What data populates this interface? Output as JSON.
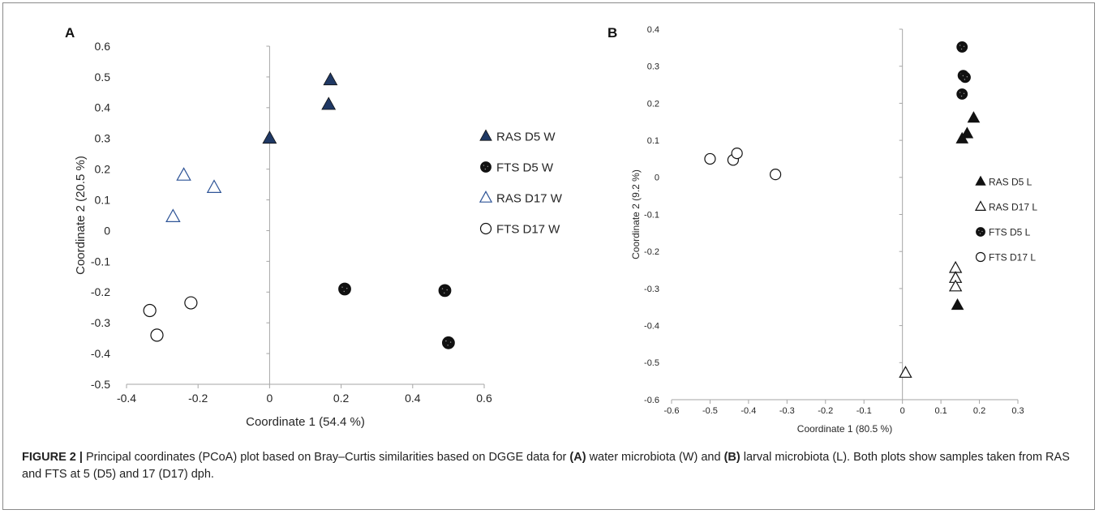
{
  "figure_label": "FIGURE 2 |",
  "caption": {
    "t1": "Principal coordinates (PCoA) plot based on Bray–Curtis similarities based on DGGE data for",
    "a": "(A)",
    "t2": "water microbiota (W) and",
    "b": "(B)",
    "t3": "larval microbiota (L). Both plots show samples taken from RAS and FTS at 5 (D5) and 17 (D17) dph."
  },
  "colors": {
    "axis": "#a6a6a6",
    "navy": "#1f3864",
    "blue_outline": "#2f5597",
    "black": "#111111"
  },
  "chart_data": [
    {
      "type": "scatter",
      "panel": "A",
      "title": "",
      "xlabel": "Coordinate 1 (54.4 %)",
      "ylabel": "Coordinate 2 (20.5 %)",
      "xlim": [
        -0.4,
        0.6
      ],
      "ylim": [
        -0.5,
        0.6
      ],
      "xticks": [
        "-0.4",
        "-0.2",
        "0",
        "0.2",
        "0.4",
        "0.6"
      ],
      "yticks": [
        "0.6",
        "0.5",
        "0.4",
        "0.3",
        "0.2",
        "0.1",
        "0",
        "-0.1",
        "-0.2",
        "-0.3",
        "-0.4",
        "-0.5"
      ],
      "grid": false,
      "legend_position": "right",
      "series": [
        {
          "name": "RAS D5 W",
          "marker": "triangle-filled",
          "points": [
            [
              0.17,
              0.49
            ],
            [
              0.165,
              0.41
            ],
            [
              0.0,
              0.3
            ]
          ]
        },
        {
          "name": "FTS D5 W",
          "marker": "circle-filled",
          "points": [
            [
              0.21,
              -0.19
            ],
            [
              0.49,
              -0.195
            ],
            [
              0.5,
              -0.365
            ]
          ]
        },
        {
          "name": "RAS D17 W",
          "marker": "triangle-open",
          "points": [
            [
              -0.24,
              0.18
            ],
            [
              -0.155,
              0.14
            ],
            [
              -0.27,
              0.045
            ]
          ]
        },
        {
          "name": "FTS D17 W",
          "marker": "circle-open",
          "points": [
            [
              -0.335,
              -0.26
            ],
            [
              -0.22,
              -0.235
            ],
            [
              -0.315,
              -0.34
            ]
          ]
        }
      ]
    },
    {
      "type": "scatter",
      "panel": "B",
      "title": "",
      "xlabel": "Coordinate 1 (80.5 %)",
      "ylabel": "Coordinate 2 (9.2 %)",
      "xlim": [
        -0.6,
        0.3
      ],
      "ylim": [
        -0.6,
        0.4
      ],
      "xticks": [
        "-0.6",
        "-0.5",
        "-0.4",
        "-0.3",
        "-0.2",
        "-0.1",
        "0",
        "0.1",
        "0.2",
        "0.3"
      ],
      "yticks": [
        "0.4",
        "0.3",
        "0.2",
        "0.1",
        "0",
        "-0.1",
        "-0.2",
        "-0.3",
        "-0.4",
        "-0.5",
        "-0.6"
      ],
      "grid": false,
      "legend_position": "right",
      "series": [
        {
          "name": "RAS D5 L",
          "marker": "triangle-filled",
          "points": [
            [
              0.185,
              0.16
            ],
            [
              0.168,
              0.118
            ],
            [
              0.155,
              0.104
            ],
            [
              0.143,
              -0.345
            ]
          ]
        },
        {
          "name": "RAS D17 L",
          "marker": "triangle-open",
          "points": [
            [
              0.138,
              -0.245
            ],
            [
              0.138,
              -0.272
            ],
            [
              0.138,
              -0.295
            ],
            [
              0.008,
              -0.528
            ]
          ]
        },
        {
          "name": "FTS D5 L",
          "marker": "circle-filled",
          "points": [
            [
              0.155,
              0.352
            ],
            [
              0.158,
              0.275
            ],
            [
              0.163,
              0.27
            ],
            [
              0.155,
              0.225
            ]
          ]
        },
        {
          "name": "FTS D17 L",
          "marker": "circle-open",
          "points": [
            [
              -0.5,
              0.05
            ],
            [
              -0.44,
              0.047
            ],
            [
              -0.43,
              0.065
            ],
            [
              -0.33,
              0.008
            ]
          ]
        }
      ]
    }
  ]
}
